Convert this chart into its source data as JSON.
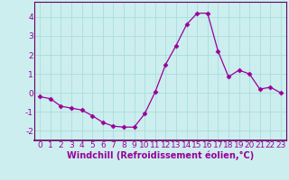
{
  "x": [
    0,
    1,
    2,
    3,
    4,
    5,
    6,
    7,
    8,
    9,
    10,
    11,
    12,
    13,
    14,
    15,
    16,
    17,
    18,
    19,
    20,
    21,
    22,
    23
  ],
  "y": [
    -0.2,
    -0.3,
    -0.7,
    -0.8,
    -0.9,
    -1.2,
    -1.55,
    -1.75,
    -1.8,
    -1.8,
    -1.1,
    0.05,
    1.5,
    2.5,
    3.6,
    4.2,
    4.2,
    2.2,
    0.85,
    1.2,
    1.0,
    0.2,
    0.3,
    0.0
  ],
  "line_color": "#990099",
  "marker": "D",
  "marker_size": 2.5,
  "bg_color": "#cceeee",
  "grid_color": "#aadddd",
  "xlabel": "Windchill (Refroidissement éolien,°C)",
  "ylabel": "",
  "xlim": [
    -0.5,
    23.5
  ],
  "ylim": [
    -2.5,
    4.8
  ],
  "yticks": [
    -2,
    -1,
    0,
    1,
    2,
    3,
    4
  ],
  "xticks": [
    0,
    1,
    2,
    3,
    4,
    5,
    6,
    7,
    8,
    9,
    10,
    11,
    12,
    13,
    14,
    15,
    16,
    17,
    18,
    19,
    20,
    21,
    22,
    23
  ],
  "xlabel_fontsize": 7,
  "tick_fontsize": 6.5,
  "spine_color": "#660066",
  "axis_bottom_color": "#660066"
}
